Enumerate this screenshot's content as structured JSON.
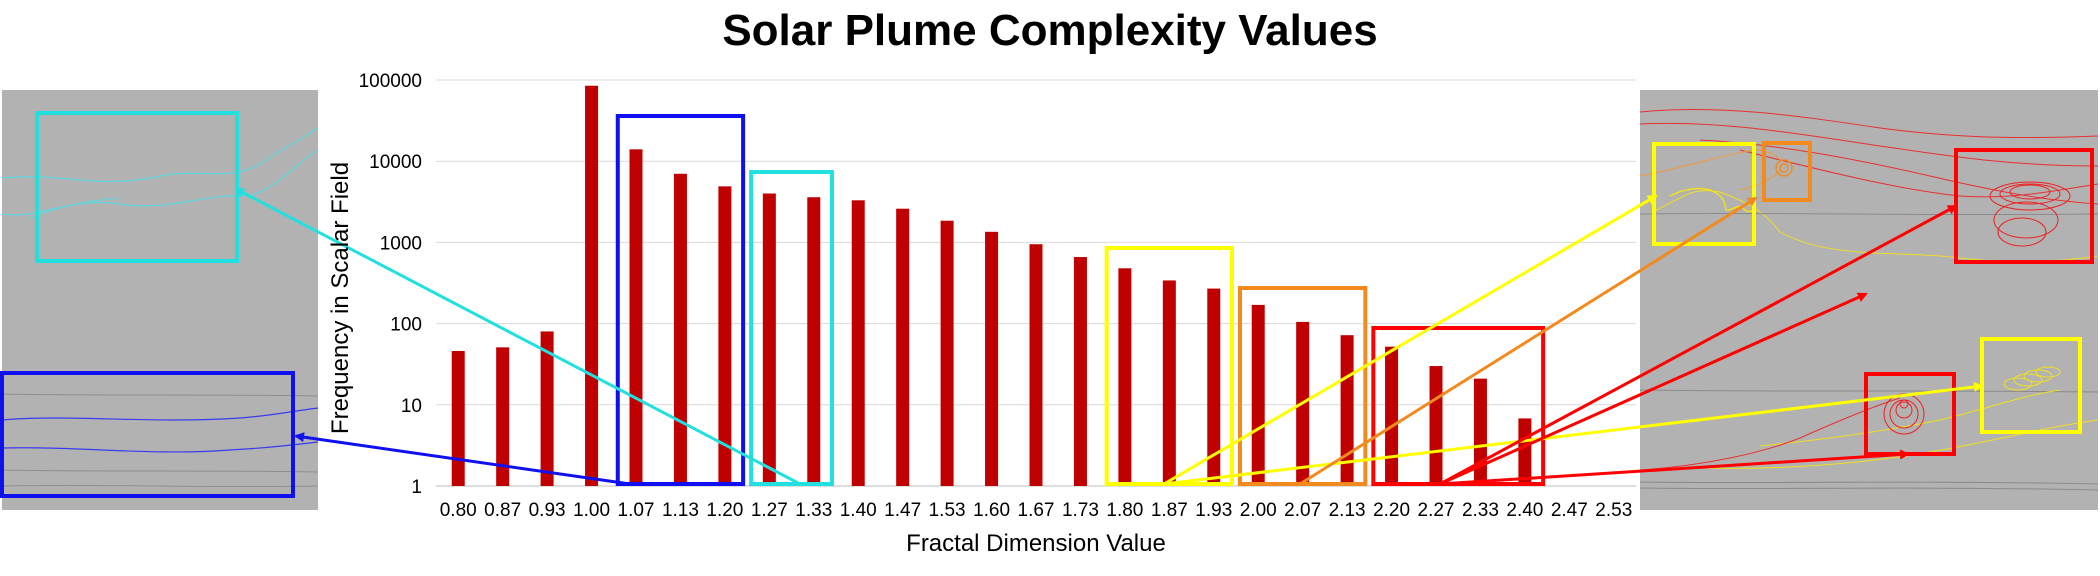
{
  "colors": {
    "bar": "#c00000",
    "panel_bg": "#b2b2b2",
    "grid": "#d9d9d9",
    "cyan": "#22e0e0",
    "blue": "#1010ee",
    "yellow": "#ffff00",
    "orange": "#f28a1e",
    "red": "#ff0000"
  },
  "chart_data": {
    "type": "bar",
    "title": "Solar Plume Complexity Values",
    "xlabel": "Fractal Dimension Value",
    "ylabel": "Frequency in Scalar Field",
    "y_scale": "log",
    "ylim": [
      1,
      100000
    ],
    "y_ticks": [
      "1",
      "10",
      "100",
      "1000",
      "10000",
      "100000"
    ],
    "grid": "horizontal",
    "legend": "none",
    "categories": [
      "0.80",
      "0.87",
      "0.93",
      "1.00",
      "1.07",
      "1.13",
      "1.20",
      "1.27",
      "1.33",
      "1.40",
      "1.47",
      "1.53",
      "1.60",
      "1.67",
      "1.73",
      "1.80",
      "1.87",
      "1.93",
      "2.00",
      "2.07",
      "2.13",
      "2.20",
      "2.27",
      "2.33",
      "2.40",
      "2.47",
      "2.53"
    ],
    "values": [
      46,
      51,
      80,
      85000,
      14000,
      7000,
      4900,
      4000,
      3600,
      3300,
      2600,
      1850,
      1350,
      950,
      660,
      480,
      340,
      270,
      170,
      105,
      72,
      52,
      30,
      21,
      6.8,
      null,
      null
    ],
    "highlight_groups": [
      {
        "color": "blue",
        "from": "1.07",
        "to": "1.20"
      },
      {
        "color": "cyan",
        "from": "1.27",
        "to": "1.33"
      },
      {
        "color": "yellow",
        "from": "1.80",
        "to": "1.93"
      },
      {
        "color": "orange",
        "from": "2.00",
        "to": "2.13"
      },
      {
        "color": "red",
        "from": "2.20",
        "to": "2.40"
      }
    ]
  }
}
